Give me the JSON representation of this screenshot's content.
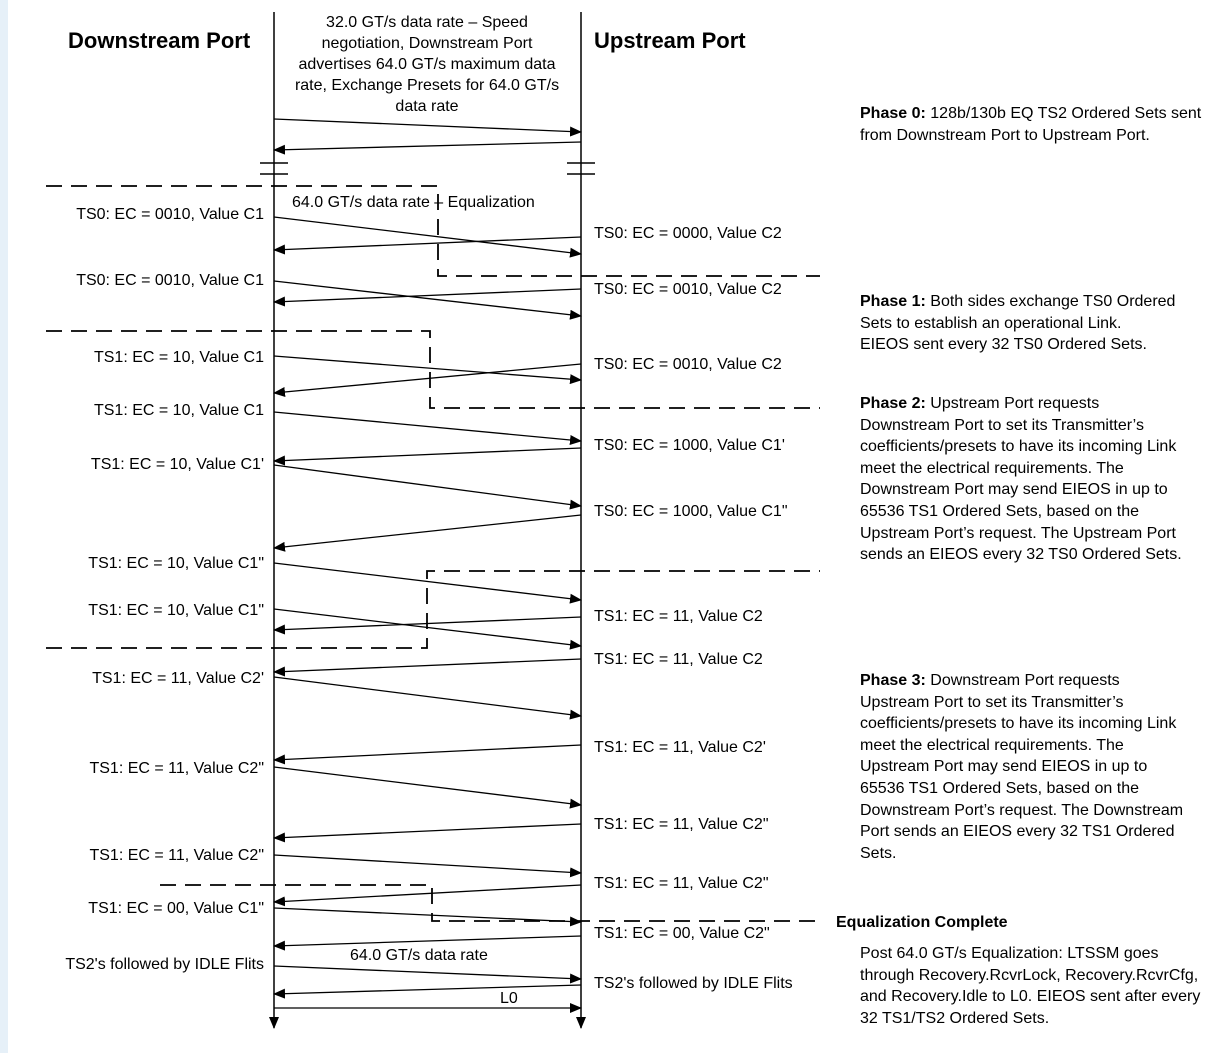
{
  "headers": {
    "downstream": "Downstream Port",
    "upstream": "Upstream Port"
  },
  "notes": {
    "top": "32.0 GT/s data rate – Speed negotiation, Downstream Port advertises 64.0 GT/s maximum data rate, Exchange Presets for 64.0 GT/s data rate",
    "equalization": "64.0 GT/s data rate – Equalization",
    "data_rate": "64.0 GT/s data rate",
    "l0": "L0"
  },
  "left_labels": [
    "TS0: EC = 0010, Value C1",
    "TS0: EC = 0010, Value C1",
    "TS1: EC = 10, Value C1",
    "TS1: EC = 10, Value C1",
    "TS1: EC = 10, Value C1'",
    "TS1: EC = 10, Value C1\"",
    "TS1: EC = 10, Value C1\"",
    "TS1: EC = 11, Value C2'",
    "TS1: EC = 11, Value C2\"",
    "TS1: EC = 11, Value C2\"",
    "TS1: EC = 00, Value C1\"",
    "TS2's followed by IDLE Flits"
  ],
  "right_labels": [
    "TS0: EC = 0000, Value C2",
    "TS0: EC = 0010, Value C2",
    "TS0: EC = 0010, Value C2",
    "TS0: EC = 1000, Value C1'",
    "TS0: EC = 1000, Value C1\"",
    "TS1: EC = 11, Value C2",
    "TS1: EC = 11, Value C2",
    "TS1: EC = 11, Value C2'",
    "TS1: EC = 11, Value C2\"",
    "TS1: EC = 11, Value C2\"",
    "TS1: EC = 00, Value C2\"",
    "TS2's followed by IDLE Flits"
  ],
  "phases": {
    "p0_title": "Phase 0:",
    "p0_text": "128b/130b EQ TS2 Ordered Sets sent from Downstream Port to Upstream Port.",
    "p1_title": "Phase 1:",
    "p1_text": "Both sides exchange TS0 Ordered Sets to establish an operational Link.",
    "p1_text2": "EIEOS sent every 32 TS0 Ordered Sets.",
    "p2_title": "Phase 2:",
    "p2_text": "Upstream Port requests Downstream Port to set its Transmitter’s coefficients/presets to have its incoming Link meet the electrical requirements. The Downstream Port may send EIEOS in up to 65536 TS1 Ordered Sets, based on the Upstream Port’s request. The Upstream Port sends an EIEOS every 32 TS0 Ordered Sets.",
    "p3_title": "Phase 3:",
    "p3_text": "Downstream Port requests Upstream Port to set its Transmitter’s coefficients/presets to have its incoming Link meet the electrical requirements. The Upstream Port may send EIEOS in up to 65536 TS1 Ordered Sets, based on the Downstream Port’s request. The Downstream Port sends an EIEOS every 32 TS1 Ordered Sets.",
    "complete_title": "Equalization Complete",
    "complete_text": "Post 64.0 GT/s Equalization: LTSSM goes through Recovery.RcvrLock, Recovery.RcvrCfg, and Recovery.Idle to L0. EIEOS sent after every 32 TS1/TS2 Ordered Sets."
  }
}
